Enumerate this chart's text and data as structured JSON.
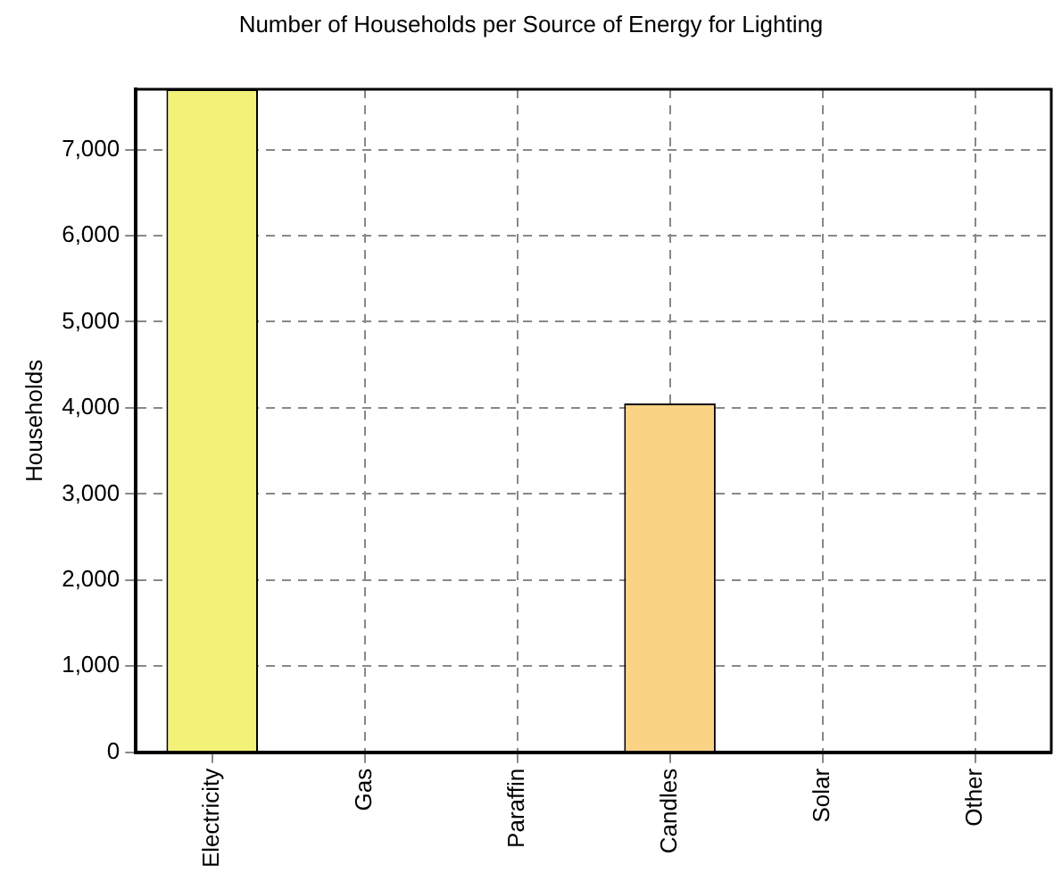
{
  "chart_data": {
    "type": "bar",
    "title": "Number of Households per Source of Energy for Lighting",
    "ylabel": "Households",
    "categories": [
      "Electricity",
      "Gas",
      "Paraffin",
      "Candles",
      "Solar",
      "Other"
    ],
    "values": [
      7700,
      0,
      0,
      4050,
      0,
      0
    ],
    "colors": [
      "#f2f279",
      "#fad384",
      "#f2f279",
      "#fad384",
      "#f2f279",
      "#fad384"
    ],
    "ylim": [
      0,
      7700
    ],
    "yticks": [
      0,
      {
        "value": 1000,
        "label": "1,000"
      },
      {
        "value": 2000,
        "label": "2,000"
      },
      {
        "value": 3000,
        "label": "3,000"
      },
      {
        "value": 4000,
        "label": "4,000"
      },
      {
        "value": 5000,
        "label": "5,000"
      },
      {
        "value": 6000,
        "label": "6,000"
      },
      {
        "value": 7000,
        "label": "7,000"
      }
    ],
    "grid": true,
    "legend": false
  }
}
